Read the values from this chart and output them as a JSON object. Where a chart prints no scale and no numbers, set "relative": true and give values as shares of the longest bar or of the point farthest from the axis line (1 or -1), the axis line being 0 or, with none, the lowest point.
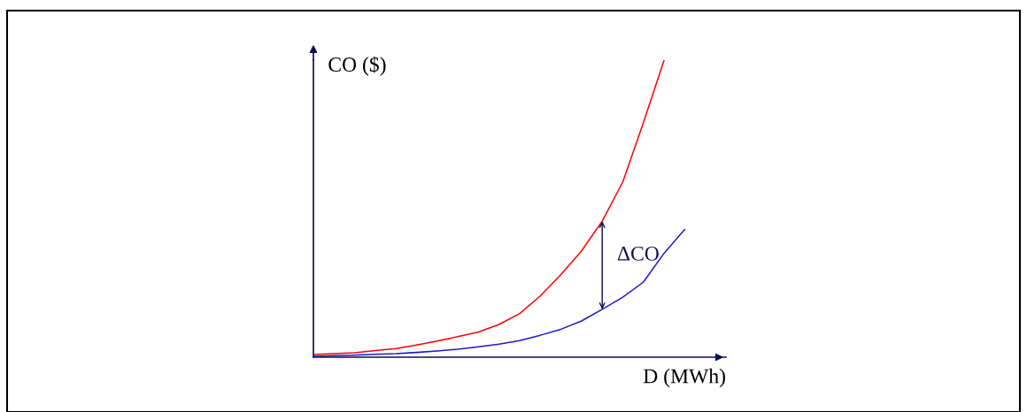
{
  "chart_data": {
    "type": "line",
    "relative": true,
    "xlabel": "D (MWh)",
    "ylabel": "CO ($)",
    "marker": "none",
    "line_style": "solid",
    "annotations": [
      "ΔCO"
    ],
    "categories": [
      null,
      null,
      null,
      null,
      null,
      null,
      null,
      null,
      null,
      null,
      null,
      null,
      null,
      null,
      null,
      null,
      null,
      null,
      null
    ],
    "series": [
      {
        "color": "#ff0000",
        "values": [
          0.009,
          0.012,
          0.015,
          0.022,
          0.029,
          0.041,
          0.054,
          0.069,
          0.085,
          0.11,
          0.147,
          0.206,
          0.278,
          0.358,
          0.458,
          0.59,
          0.79,
          1,
          null
        ]
      },
      {
        "color": "#1a1acc",
        "values": [
          0.003,
          0.005,
          0.007,
          0.01,
          0.012,
          0.016,
          0.021,
          0.027,
          0.035,
          0.044,
          0.056,
          0.074,
          0.094,
          0.122,
          0.161,
          0.202,
          0.253,
          0.35,
          0.43
        ]
      }
    ]
  }
}
